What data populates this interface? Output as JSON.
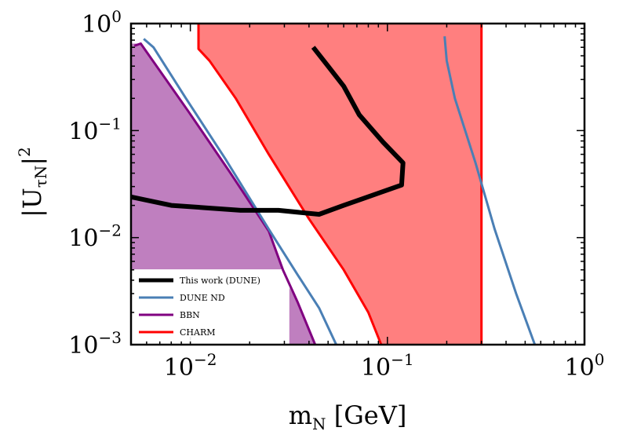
{
  "chart_data": {
    "type": "line",
    "xscale": "log",
    "yscale": "log",
    "xlim": [
      0.005,
      1.0
    ],
    "ylim": [
      0.001,
      1.0
    ],
    "x_ticks": [
      {
        "value": 0.01,
        "base": "10",
        "exp": "−2"
      },
      {
        "value": 0.1,
        "base": "10",
        "exp": "−1"
      },
      {
        "value": 1.0,
        "base": "10",
        "exp": "0"
      }
    ],
    "y_ticks": [
      {
        "value": 0.001,
        "base": "10",
        "exp": "−3"
      },
      {
        "value": 0.01,
        "base": "10",
        "exp": "−2"
      },
      {
        "value": 0.1,
        "base": "10",
        "exp": "−1"
      },
      {
        "value": 1.0,
        "base": "10",
        "exp": "0"
      }
    ],
    "xlabel": {
      "main": "m",
      "sub": "N",
      "unit": " [GeV]"
    },
    "ylabel": {
      "main": "|U",
      "sub": "τN",
      "close": "|",
      "sup": "2"
    },
    "regions": [
      {
        "name": "charm-region",
        "color": "#ff7f7f",
        "polygon": [
          [
            0.011,
            1.0
          ],
          [
            0.3,
            1.0
          ],
          [
            0.3,
            0.001
          ],
          [
            0.093,
            0.001
          ],
          [
            0.08,
            0.002
          ],
          [
            0.06,
            0.005
          ],
          [
            0.04,
            0.015
          ],
          [
            0.025,
            0.06
          ],
          [
            0.017,
            0.2
          ],
          [
            0.0125,
            0.45
          ],
          [
            0.011,
            0.58
          ]
        ]
      },
      {
        "name": "bbn-region",
        "color": "#bf7fbf",
        "polygon": [
          [
            0.005,
            0.65
          ],
          [
            0.0056,
            0.65
          ],
          [
            0.0098,
            0.15
          ],
          [
            0.016,
            0.04
          ],
          [
            0.025,
            0.0115
          ],
          [
            0.0295,
            0.005
          ],
          [
            0.005,
            0.005
          ]
        ]
      },
      {
        "name": "bbn-region-tail",
        "color": "#bf7fbf",
        "polygon": [
          [
            0.0318,
            0.001
          ],
          [
            0.0318,
            0.0034
          ],
          [
            0.035,
            0.0025
          ],
          [
            0.043,
            0.001
          ]
        ]
      }
    ],
    "series": [
      {
        "name": "CHARM",
        "color": "#ff0000",
        "width": 3,
        "x": [
          0.011,
          0.011,
          0.0125,
          0.017,
          0.025,
          0.04,
          0.06,
          0.08,
          0.093
        ],
        "y": [
          1.0,
          0.58,
          0.45,
          0.2,
          0.06,
          0.015,
          0.005,
          0.002,
          0.001
        ]
      },
      {
        "name": "CHARM-right",
        "color": "#ff0000",
        "width": 3,
        "x": [
          0.3,
          0.3
        ],
        "y": [
          1.0,
          0.001
        ]
      },
      {
        "name": "BBN",
        "color": "#800080",
        "width": 3,
        "x": [
          0.0052,
          0.0056,
          0.0098,
          0.016,
          0.025,
          0.0295,
          0.035,
          0.043
        ],
        "y": [
          0.62,
          0.65,
          0.15,
          0.04,
          0.0115,
          0.005,
          0.0025,
          0.001
        ]
      },
      {
        "name": "DUNE ND",
        "color": "#4a7fb5",
        "width": 3,
        "x": [
          0.0058,
          0.0065,
          0.0095,
          0.015,
          0.025,
          0.035,
          0.045,
          0.055
        ],
        "y": [
          0.72,
          0.6,
          0.2,
          0.055,
          0.012,
          0.0045,
          0.0022,
          0.001
        ]
      },
      {
        "name": "DUNE ND-right",
        "color": "#4a7fb5",
        "width": 3,
        "x": [
          0.195,
          0.2,
          0.22,
          0.28,
          0.35,
          0.45,
          0.56
        ],
        "y": [
          0.76,
          0.45,
          0.2,
          0.05,
          0.012,
          0.003,
          0.001
        ]
      },
      {
        "name": "This work (DUNE)",
        "color": "#000000",
        "width": 6,
        "x": [
          0.005,
          0.008,
          0.012,
          0.018,
          0.028,
          0.045,
          0.06,
          0.09,
          0.118,
          0.12,
          0.095,
          0.072,
          0.06,
          0.05,
          0.042
        ],
        "y": [
          0.024,
          0.02,
          0.019,
          0.018,
          0.018,
          0.0165,
          0.02,
          0.026,
          0.031,
          0.05,
          0.078,
          0.14,
          0.26,
          0.4,
          0.6
        ]
      }
    ],
    "legend": {
      "position": "bottom-left",
      "entries": [
        {
          "label": "This work (DUNE)",
          "color": "#000000",
          "width": 5
        },
        {
          "label": "DUNE ND",
          "color": "#4a7fb5",
          "width": 3
        },
        {
          "label": "BBN",
          "color": "#800080",
          "width": 3
        },
        {
          "label": "CHARM",
          "color": "#ff0000",
          "width": 3
        }
      ]
    }
  }
}
